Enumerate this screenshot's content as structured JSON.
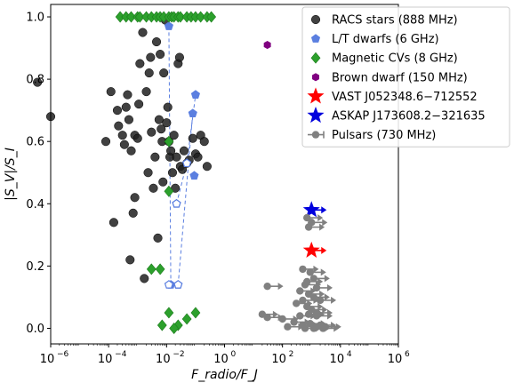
{
  "chart_data": {
    "type": "scatter",
    "title": "",
    "xlabel": "F_radio/F_J",
    "ylabel": "|S_V|/S_I",
    "xscale": "log",
    "xlim": [
      1e-06,
      1000000.0
    ],
    "ylim": [
      -0.05,
      1.04
    ],
    "x_ticks": [
      {
        "value": 1e-06,
        "base": "10",
        "exp": "−6"
      },
      {
        "value": 0.0001,
        "base": "10",
        "exp": "−4"
      },
      {
        "value": 0.01,
        "base": "10",
        "exp": "−2"
      },
      {
        "value": 1,
        "base": "10",
        "exp": "0"
      },
      {
        "value": 100.0,
        "base": "10",
        "exp": "2"
      },
      {
        "value": 10000.0,
        "base": "10",
        "exp": "4"
      },
      {
        "value": 1000000.0,
        "base": "10",
        "exp": "6"
      }
    ],
    "y_ticks": [
      {
        "value": 0.0,
        "label": "0.0"
      },
      {
        "value": 0.2,
        "label": "0.2"
      },
      {
        "value": 0.4,
        "label": "0.4"
      },
      {
        "value": 0.6,
        "label": "0.6"
      },
      {
        "value": 0.8,
        "label": "0.8"
      },
      {
        "value": 1.0,
        "label": "1.0"
      }
    ],
    "grid": false,
    "legend_position": "top-right",
    "series": [
      {
        "name": "RACS stars (888 MHz)",
        "marker": "circle",
        "color": "#202020",
        "points": [
          [
            3.5e-07,
            0.79
          ],
          [
            1e-06,
            0.68
          ],
          [
            8e-05,
            0.6
          ],
          [
            0.00012,
            0.76
          ],
          [
            0.00015,
            0.34
          ],
          [
            0.0002,
            0.7
          ],
          [
            0.00022,
            0.65
          ],
          [
            0.0003,
            0.62
          ],
          [
            0.00035,
            0.59
          ],
          [
            0.0004,
            0.71
          ],
          [
            0.00045,
            0.75
          ],
          [
            0.0005,
            0.67
          ],
          [
            0.00055,
            0.22
          ],
          [
            0.0006,
            0.57
          ],
          [
            0.0007,
            0.37
          ],
          [
            0.0008,
            0.42
          ],
          [
            0.0008,
            0.62
          ],
          [
            0.001,
            0.61
          ],
          [
            0.0011,
            0.72
          ],
          [
            0.0012,
            0.85
          ],
          [
            0.0015,
            0.95
          ],
          [
            0.0017,
            0.16
          ],
          [
            0.002,
            0.76
          ],
          [
            0.0023,
            0.5
          ],
          [
            0.0025,
            0.82
          ],
          [
            0.0028,
            0.87
          ],
          [
            0.003,
            0.63
          ],
          [
            0.0035,
            0.45
          ],
          [
            0.004,
            0.55
          ],
          [
            0.0045,
            0.92
          ],
          [
            0.005,
            0.29
          ],
          [
            0.0055,
            0.67
          ],
          [
            0.006,
            0.88
          ],
          [
            0.0065,
            0.64
          ],
          [
            0.007,
            0.6
          ],
          [
            0.0075,
            0.47
          ],
          [
            0.008,
            0.82
          ],
          [
            0.009,
            0.99
          ],
          [
            0.01,
            0.66
          ],
          [
            0.011,
            0.71
          ],
          [
            0.012,
            0.6
          ],
          [
            0.013,
            0.55
          ],
          [
            0.014,
            0.57
          ],
          [
            0.016,
            0.5
          ],
          [
            0.018,
            0.62
          ],
          [
            0.02,
            0.45
          ],
          [
            0.022,
            0.55
          ],
          [
            0.025,
            0.85
          ],
          [
            0.028,
            0.87
          ],
          [
            0.03,
            0.52
          ],
          [
            0.035,
            0.51
          ],
          [
            0.04,
            0.57
          ],
          [
            0.05,
            0.53
          ],
          [
            0.06,
            0.54
          ],
          [
            0.08,
            0.61
          ],
          [
            0.1,
            0.56
          ],
          [
            0.12,
            0.55
          ],
          [
            0.15,
            0.62
          ],
          [
            0.2,
            0.6
          ],
          [
            0.25,
            0.52
          ]
        ]
      },
      {
        "name": "L/T dwarfs (6 GHz)",
        "marker": "pentagon",
        "color": "#5b7fe0",
        "points": [
          [
            0.012,
            0.97
          ],
          [
            0.014,
            0.14
          ],
          [
            0.022,
            0.4
          ],
          [
            0.025,
            0.14
          ],
          [
            0.05,
            0.53
          ],
          [
            0.08,
            0.69
          ],
          [
            0.09,
            0.49
          ],
          [
            0.1,
            0.75
          ]
        ],
        "open_points": [
          [
            0.012,
            0.14
          ],
          [
            0.025,
            0.14
          ],
          [
            0.022,
            0.4
          ],
          [
            0.05,
            0.53
          ]
        ]
      },
      {
        "name": "Magnetic CVs (8 GHz)",
        "marker": "diamond",
        "color": "#2ca02c",
        "points": [
          [
            0.00025,
            1.0
          ],
          [
            0.0004,
            1.0
          ],
          [
            0.0006,
            1.0
          ],
          [
            0.001,
            1.0
          ],
          [
            0.0012,
            1.0
          ],
          [
            0.002,
            1.0
          ],
          [
            0.003,
            1.0
          ],
          [
            0.0045,
            1.0
          ],
          [
            0.006,
            1.0
          ],
          [
            0.008,
            1.0
          ],
          [
            0.012,
            1.0
          ],
          [
            0.015,
            1.0
          ],
          [
            0.018,
            1.0
          ],
          [
            0.025,
            1.0
          ],
          [
            0.03,
            1.0
          ],
          [
            0.05,
            1.0
          ],
          [
            0.07,
            1.0
          ],
          [
            0.1,
            1.0
          ],
          [
            0.15,
            1.0
          ],
          [
            0.25,
            1.0
          ],
          [
            0.35,
            1.0
          ],
          [
            0.012,
            0.6
          ],
          [
            0.012,
            0.44
          ],
          [
            0.003,
            0.19
          ],
          [
            0.006,
            0.19
          ],
          [
            0.012,
            0.05
          ],
          [
            0.007,
            0.01
          ],
          [
            0.025,
            0.01
          ],
          [
            0.018,
            0.0
          ],
          [
            0.05,
            0.03
          ],
          [
            0.1,
            0.05
          ]
        ]
      },
      {
        "name": "Brown dwarf (150 MHz)",
        "marker": "hexagon",
        "color": "#800080",
        "points": [
          [
            30,
            0.91
          ]
        ]
      },
      {
        "name": "VAST J052348.6−712552",
        "marker": "star",
        "color": "#ff0000",
        "points": [
          [
            1000,
            0.25
          ]
        ],
        "lower_limit": true
      },
      {
        "name": "ASKAP J173608.2−321635",
        "marker": "star",
        "color": "#0000dd",
        "points": [
          [
            1000,
            0.38
          ]
        ],
        "lower_limit": true
      },
      {
        "name": "Pulsars (730 MHz)",
        "marker": "circle-arrow",
        "color": "#808080",
        "points": [
          [
            700,
            0.355
          ],
          [
            1000,
            0.34
          ],
          [
            800,
            0.325
          ],
          [
            500,
            0.19
          ],
          [
            900,
            0.18
          ],
          [
            1200,
            0.16
          ],
          [
            700,
            0.15
          ],
          [
            600,
            0.14
          ],
          [
            1500,
            0.13
          ],
          [
            30,
            0.135
          ],
          [
            400,
            0.12
          ],
          [
            800,
            0.11
          ],
          [
            1200,
            0.1
          ],
          [
            500,
            0.09
          ],
          [
            2000,
            0.09
          ],
          [
            300,
            0.08
          ],
          [
            700,
            0.07
          ],
          [
            1000,
            0.06
          ],
          [
            1500,
            0.05
          ],
          [
            20,
            0.045
          ],
          [
            30,
            0.035
          ],
          [
            100,
            0.03
          ],
          [
            400,
            0.04
          ],
          [
            800,
            0.045
          ],
          [
            1500,
            0.04
          ],
          [
            250,
            0.02
          ],
          [
            500,
            0.01
          ],
          [
            900,
            0.015
          ],
          [
            2000,
            0.01
          ],
          [
            150,
            0.005
          ],
          [
            600,
            0.0
          ],
          [
            1200,
            0.0
          ],
          [
            2500,
            0.0
          ],
          [
            3000,
            0.005
          ]
        ]
      }
    ]
  }
}
